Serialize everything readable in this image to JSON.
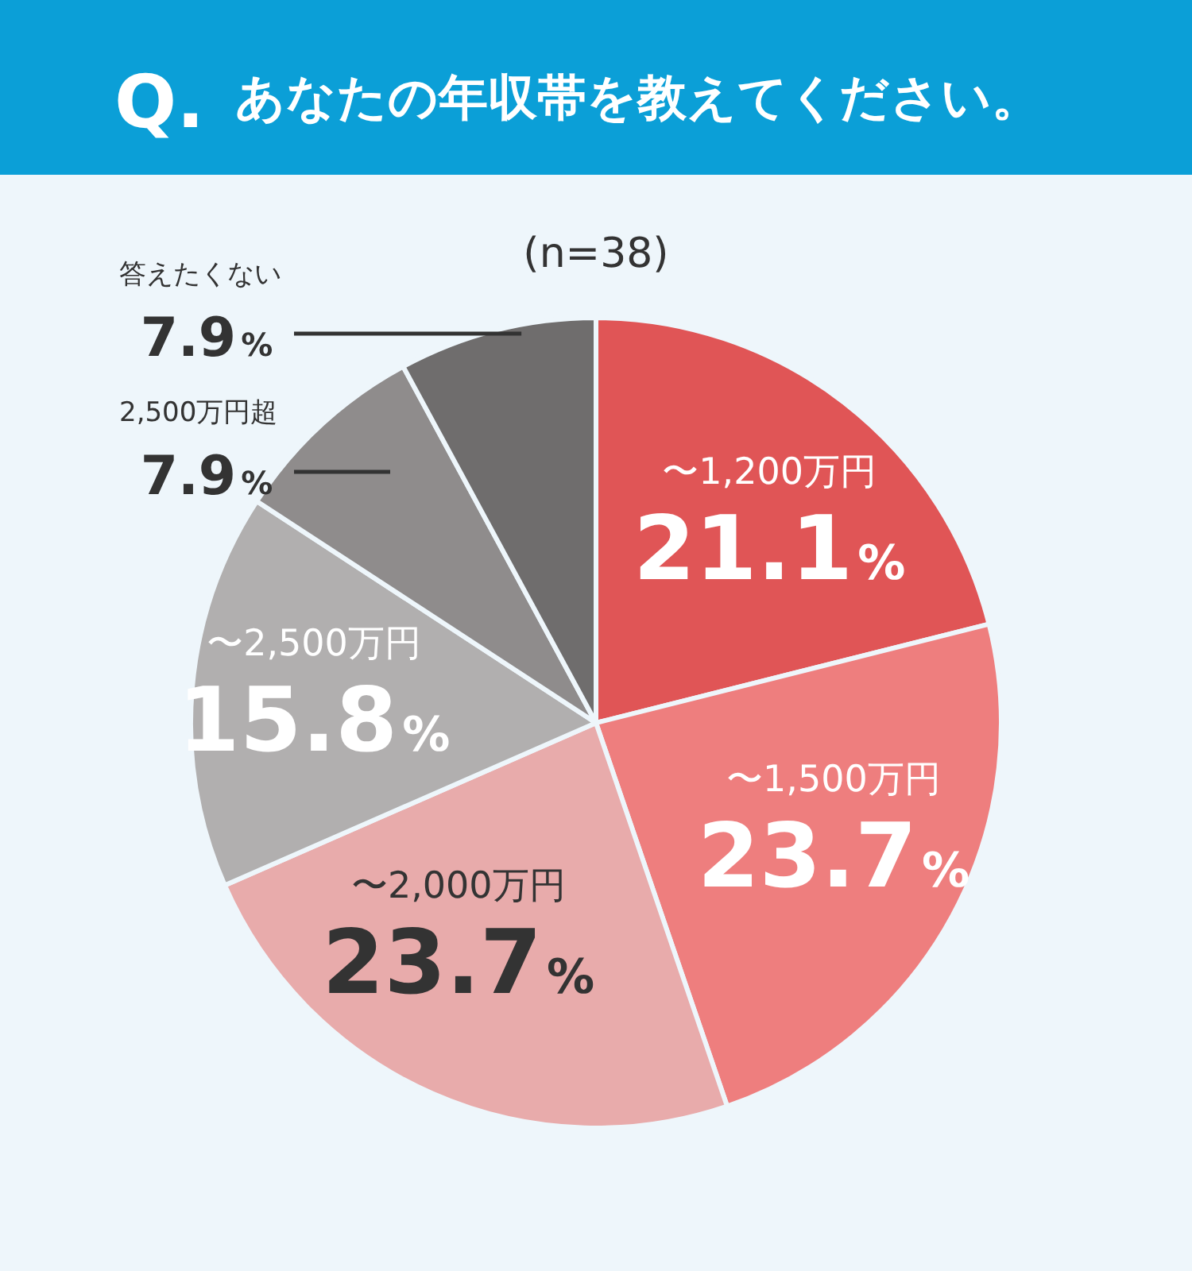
{
  "chart_data": {
    "type": "pie",
    "title": "Q.",
    "subtitle": "あなたの年収帯を教えてください。",
    "annotations": [
      "(n=38)"
    ],
    "categories": [
      "〜1,200万円",
      "〜1,500万円",
      "〜2,000万円",
      "〜2,500万円",
      "2,500万円超",
      "答えたくない"
    ],
    "values": [
      21.1,
      23.7,
      23.7,
      15.8,
      7.9,
      7.9
    ],
    "value_labels": [
      "21.1%",
      "23.7%",
      "23.7%",
      "15.8%",
      "7.9%",
      "7.9%"
    ],
    "colors": [
      "#e05556",
      "#ee7e7e",
      "#e8abab",
      "#b1afaf",
      "#8f8c8c",
      "#6f6d6d"
    ]
  }
}
